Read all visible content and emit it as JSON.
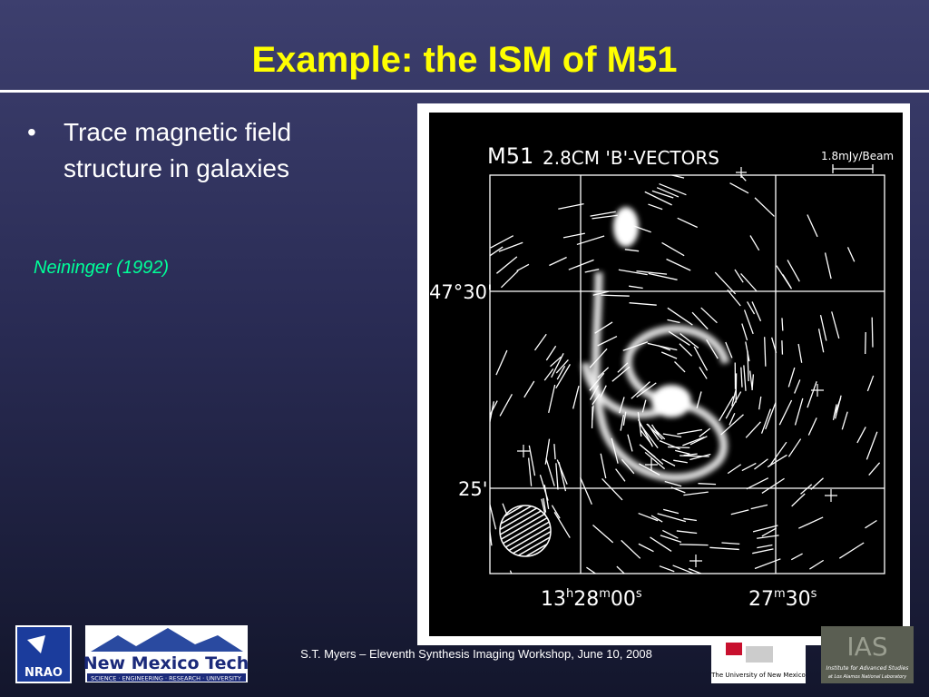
{
  "slide": {
    "title": "Example: the ISM of M51",
    "bullets": [
      "Trace magnetic field structure in galaxies"
    ],
    "citation": "Neininger (1992)",
    "figure": {
      "label": "M51",
      "caption": "2.8CM 'B'-VECTORS",
      "scale_label": "1.8mJy/Beam",
      "dec_labels": [
        "47°30'",
        "25'"
      ],
      "ra_labels": [
        [
          {
            "text": "13"
          },
          {
            "text": "h",
            "sup": true
          },
          {
            "text": "28"
          },
          {
            "text": "m",
            "sup": true
          },
          {
            "text": "00"
          },
          {
            "text": "s",
            "sup": true
          }
        ],
        [
          {
            "text": "27"
          },
          {
            "text": "m",
            "sup": true
          },
          {
            "text": "30"
          },
          {
            "text": "s",
            "sup": true
          }
        ]
      ]
    },
    "footer": "S.T. Myers – Eleventh Synthesis Imaging Workshop, June 10, 2008",
    "logos": {
      "nrao": "NRAO",
      "nmt_name": "New Mexico Tech",
      "nmt_tagline": "SCIENCE · ENGINEERING · RESEARCH · UNIVERSITY",
      "unm": "The University of New Mexico",
      "ias": "IAS",
      "ias_name": "Institute for Advanced Studies",
      "ias_sub": "at Los Alamos National Laboratory"
    }
  }
}
